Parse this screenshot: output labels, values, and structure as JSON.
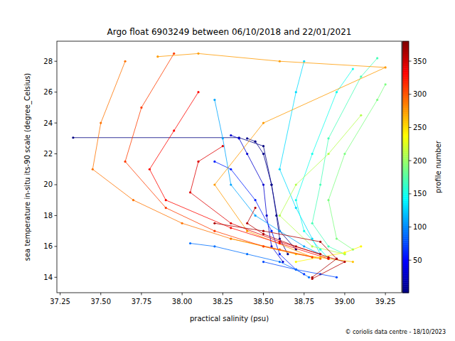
{
  "chart_data": {
    "type": "scatter",
    "marker": "circle",
    "line_style": "solid",
    "title": "Argo float 6903249 between 06/10/2018 and 22/01/2021",
    "x_label": "practical salinity (psu)",
    "y_label": "sea temperature in-situ its-90 scale (degree_Celsius)",
    "annotation": "© coriolis data centre - 18/10/2023",
    "xlim": [
      37.23,
      39.35
    ],
    "ylim": [
      13,
      29.3
    ],
    "xticks": [
      {
        "value": 37.25,
        "label": "37.25"
      },
      {
        "value": 37.5,
        "label": "37.50"
      },
      {
        "value": 37.75,
        "label": "37.75"
      },
      {
        "value": 38,
        "label": "38.00"
      },
      {
        "value": 38.25,
        "label": "38.25"
      },
      {
        "value": 38.5,
        "label": "38.50"
      },
      {
        "value": 38.75,
        "label": "38.75"
      },
      {
        "value": 39,
        "label": "39.00"
      },
      {
        "value": 39.25,
        "label": "39.25"
      }
    ],
    "yticks": [
      14,
      16,
      18,
      20,
      22,
      24,
      26,
      28
    ],
    "colorbar": {
      "label": "profile number",
      "range": [
        1,
        380
      ],
      "ticks": [
        50,
        100,
        150,
        200,
        250,
        300,
        350
      ]
    },
    "series": [
      {
        "profile": 1,
        "x": [
          37.33,
          38.35,
          38.5,
          38.55,
          38.6,
          38.7
        ],
        "values": [
          23.05,
          23.05,
          22.5,
          20.0,
          17.0,
          15.8
        ]
      },
      {
        "profile": 5,
        "x": [
          38.4,
          38.45,
          38.5,
          38.55,
          38.58,
          38.6,
          38.65
        ],
        "values": [
          23.0,
          22.8,
          22.0,
          20.0,
          18.0,
          16.5,
          15.5
        ]
      },
      {
        "profile": 30,
        "x": [
          38.3,
          38.35,
          38.4,
          38.5,
          38.52,
          38.55,
          38.62
        ],
        "values": [
          23.2,
          23.0,
          22.0,
          20.0,
          18.0,
          16.0,
          15.0
        ]
      },
      {
        "profile": 60,
        "x": [
          38.2,
          38.3,
          38.45,
          38.55,
          38.6,
          38.7,
          38.75
        ],
        "values": [
          21.5,
          21.0,
          19.0,
          17.0,
          15.5,
          14.5,
          14.2
        ]
      },
      {
        "profile": 75,
        "x": [
          38.5,
          38.7,
          38.85,
          38.95
        ],
        "values": [
          15.0,
          14.5,
          14.2,
          14.0
        ]
      },
      {
        "profile": 90,
        "x": [
          38.05,
          38.2,
          38.4,
          38.6,
          38.7,
          38.78
        ],
        "values": [
          16.2,
          16.0,
          15.5,
          15.0,
          14.5,
          14.0
        ]
      },
      {
        "profile": 110,
        "x": [
          38.2,
          38.25,
          38.3,
          38.45,
          38.6,
          38.75,
          38.85
        ],
        "values": [
          25.5,
          23.0,
          20.0,
          18.0,
          17.0,
          16.0,
          15.5
        ]
      },
      {
        "profile": 130,
        "x": [
          38.75,
          38.7,
          38.6,
          38.7,
          38.8,
          38.85
        ],
        "values": [
          28.0,
          26.0,
          21.0,
          18.5,
          16.5,
          15.5
        ]
      },
      {
        "profile": 150,
        "x": [
          39.05,
          38.95,
          38.8,
          38.7,
          38.75,
          38.85,
          38.9
        ],
        "values": [
          27.5,
          26.0,
          22.0,
          19.0,
          17.0,
          15.8,
          15.2
        ]
      },
      {
        "profile": 170,
        "x": [
          39.2,
          39.1,
          38.9,
          38.85,
          38.8,
          38.9,
          39.0
        ],
        "values": [
          28.2,
          27.0,
          23.0,
          20.0,
          17.5,
          16.0,
          15.5
        ]
      },
      {
        "profile": 190,
        "x": [
          39.25,
          39.2,
          39.0,
          38.9,
          38.95,
          39.05
        ],
        "values": [
          26.5,
          25.5,
          22.0,
          19.0,
          16.5,
          15.8
        ]
      },
      {
        "profile": 210,
        "x": [
          39.1,
          38.9,
          38.7,
          38.6,
          38.8,
          39.0
        ],
        "values": [
          24.5,
          22.0,
          20.0,
          18.0,
          16.0,
          15.5
        ]
      },
      {
        "profile": 240,
        "x": [
          38.7,
          38.85,
          39.0,
          39.1
        ],
        "values": [
          15.0,
          15.3,
          15.6,
          16.0
        ]
      },
      {
        "profile": 260,
        "x": [
          38.3,
          38.5,
          38.7,
          38.9,
          39.05
        ],
        "values": [
          16.5,
          16.0,
          15.5,
          15.2,
          15.0
        ]
      },
      {
        "profile": 275,
        "x": [
          37.85,
          38.1,
          38.6,
          39.25,
          38.5,
          38.2,
          38.4,
          38.8
        ],
        "values": [
          28.3,
          28.5,
          28.0,
          27.6,
          24.0,
          20.0,
          17.0,
          15.3
        ]
      },
      {
        "profile": 290,
        "x": [
          37.65,
          37.5,
          37.45,
          37.7,
          38.0,
          38.3,
          38.6,
          38.85
        ],
        "values": [
          28.0,
          24.0,
          21.0,
          19.0,
          17.5,
          16.5,
          15.8,
          15.2
        ]
      },
      {
        "profile": 310,
        "x": [
          37.95,
          37.75,
          37.65,
          37.9,
          38.2,
          38.5,
          38.8
        ],
        "values": [
          28.5,
          25.0,
          21.5,
          18.5,
          17.0,
          16.0,
          15.3
        ]
      },
      {
        "profile": 330,
        "x": [
          38.1,
          37.95,
          37.8,
          37.9,
          38.3,
          38.6,
          38.9
        ],
        "values": [
          26.0,
          23.5,
          21.0,
          19.0,
          17.2,
          16.2,
          15.2
        ]
      },
      {
        "profile": 345,
        "x": [
          38.25,
          38.1,
          38.05,
          38.3,
          38.6,
          38.85
        ],
        "values": [
          22.5,
          21.5,
          19.5,
          17.5,
          16.3,
          15.5
        ]
      },
      {
        "profile": 360,
        "x": [
          38.45,
          38.4,
          38.5,
          38.7,
          38.9,
          39.0,
          38.8
        ],
        "values": [
          18.5,
          17.5,
          16.8,
          16.0,
          15.3,
          15.0,
          13.9
        ]
      },
      {
        "profile": 365,
        "x": [
          38.2,
          38.5,
          38.85,
          38.95,
          38.8
        ],
        "values": [
          17.5,
          17.0,
          16.3,
          15.2,
          14.0
        ]
      }
    ]
  }
}
